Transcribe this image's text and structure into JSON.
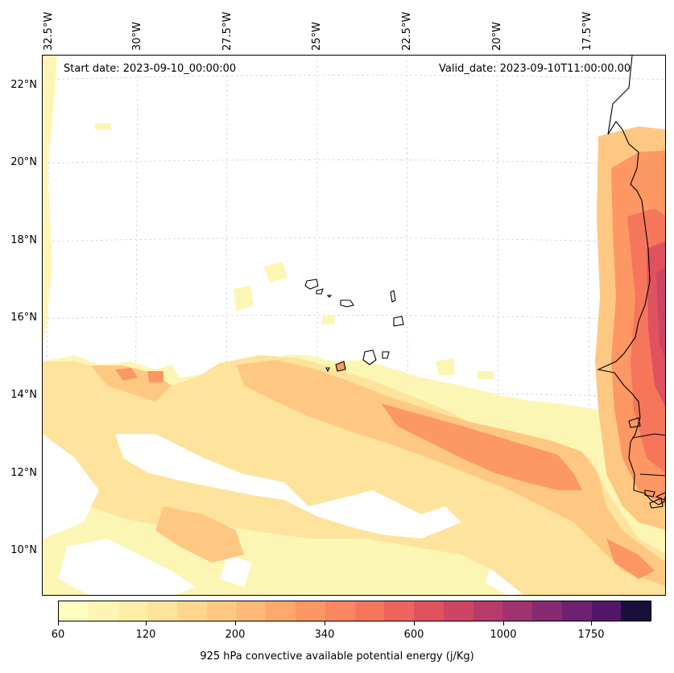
{
  "map": {
    "start_date": "Start date: 2023-09-10_00:00:00",
    "valid_date": "Valid_date: 2023-09-10T11:00:00.00",
    "lon_labels": [
      "32.5°W",
      "30°W",
      "27.5°W",
      "25°W",
      "22.5°W",
      "20°W",
      "17.5°W"
    ],
    "lat_labels": [
      "22°N",
      "20°N",
      "18°N",
      "16°N",
      "14°N",
      "12°N",
      "10°N"
    ],
    "colormap": "magma_r",
    "colors": [
      "#fcfdbf",
      "#fcf6b5",
      "#fdeea9",
      "#fde39c",
      "#fed690",
      "#fec883",
      "#feb877",
      "#fea86c",
      "#fd9763",
      "#fb8661",
      "#f6765c",
      "#ee635d",
      "#e0525e",
      "#cd4464",
      "#b73b6a",
      "#9f336f",
      "#882a71",
      "#6e2170",
      "#50176b",
      "#1a0f3a"
    ]
  },
  "colorbar": {
    "title": "925 hPa convective available potential energy (j/Kg)",
    "tick_labels": [
      "60",
      "120",
      "200",
      "340",
      "600",
      "1000",
      "1750"
    ]
  }
}
